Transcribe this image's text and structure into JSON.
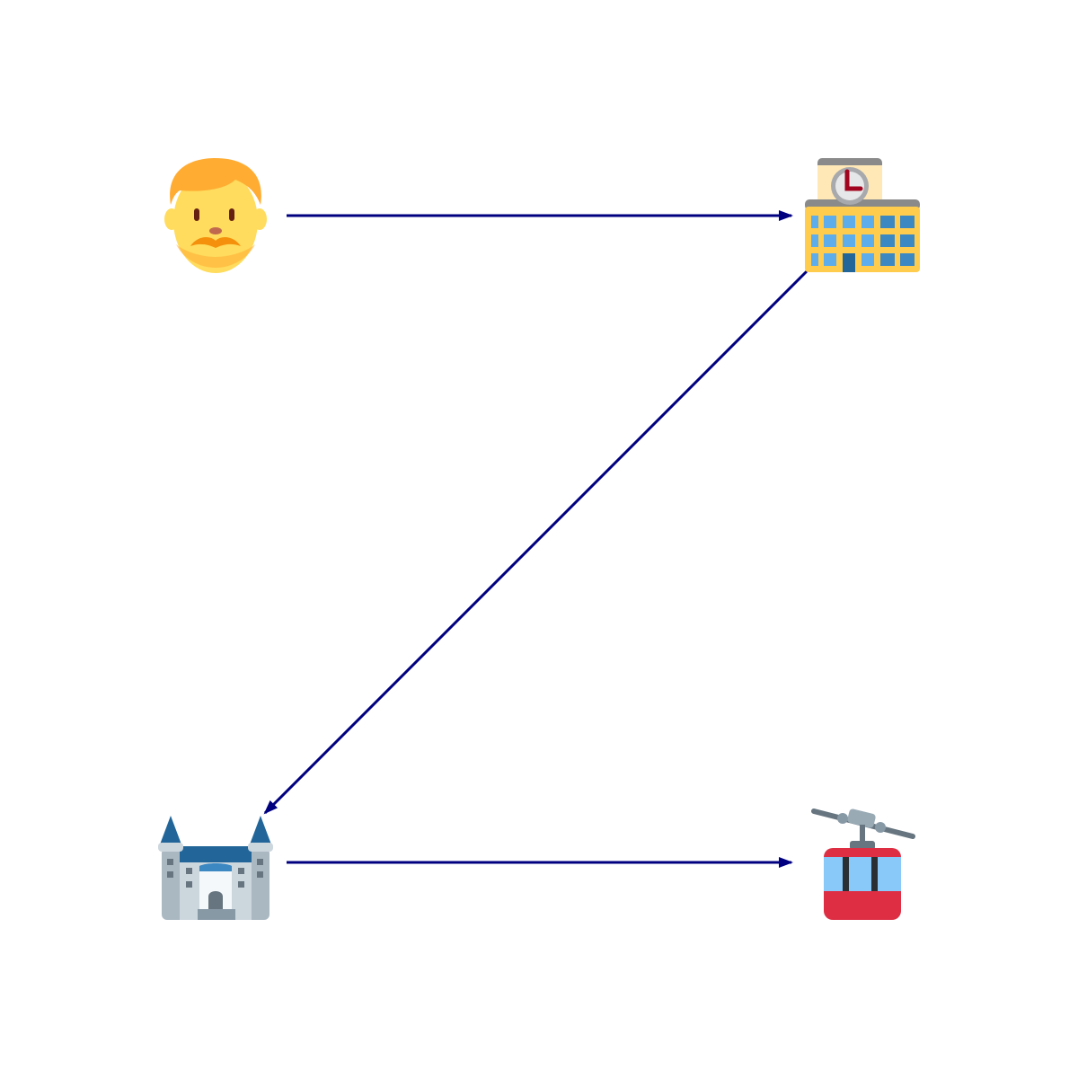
{
  "diagram": {
    "nodes": [
      {
        "id": "man",
        "icon": "man-red-hair-icon"
      },
      {
        "id": "school",
        "icon": "school-building-icon"
      },
      {
        "id": "castle",
        "icon": "european-castle-icon"
      },
      {
        "id": "cablecar",
        "icon": "aerial-tramway-icon"
      }
    ],
    "edges": [
      {
        "from": "man",
        "to": "school"
      },
      {
        "from": "school",
        "to": "castle"
      },
      {
        "from": "castle",
        "to": "cablecar"
      }
    ],
    "edge_color": "#000080"
  }
}
